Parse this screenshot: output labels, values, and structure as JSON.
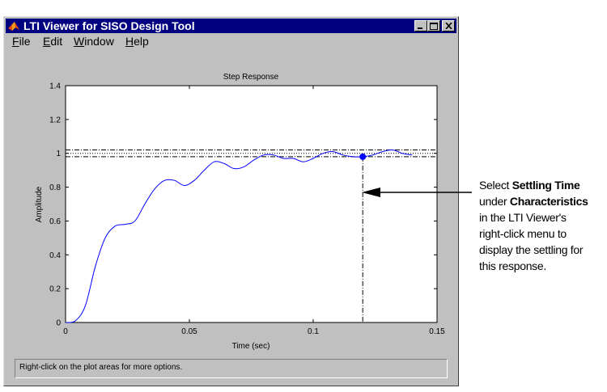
{
  "window": {
    "title": "LTI Viewer for SISO Design Tool",
    "controls": [
      "minimize-icon",
      "maximize-icon",
      "close-icon"
    ]
  },
  "menu": {
    "items": [
      {
        "label": "File",
        "name": "menu-file"
      },
      {
        "label": "Edit",
        "name": "menu-edit"
      },
      {
        "label": "Window",
        "name": "menu-window"
      },
      {
        "label": "Help",
        "name": "menu-help"
      }
    ]
  },
  "status_text": "Right-click on the plot areas for more options.",
  "chart_data": {
    "type": "line",
    "title": "Step Response",
    "xlabel": "Time (sec)",
    "ylabel": "Amplitude",
    "xlim": [
      0,
      0.15
    ],
    "ylim": [
      0,
      1.4
    ],
    "x_ticks": [
      "0",
      "0.05",
      "0.1",
      "0.15"
    ],
    "y_ticks": [
      "0",
      "0.2",
      "0.4",
      "0.6",
      "0.8",
      "1",
      "1.2",
      "1.4"
    ],
    "grid": false,
    "series": [
      {
        "color": "#0000ff",
        "x": [
          0,
          0.004,
          0.008,
          0.012,
          0.016,
          0.02,
          0.024,
          0.028,
          0.032,
          0.036,
          0.04,
          0.044,
          0.048,
          0.052,
          0.056,
          0.06,
          0.064,
          0.068,
          0.072,
          0.076,
          0.08,
          0.084,
          0.088,
          0.092,
          0.096,
          0.1,
          0.104,
          0.108,
          0.112,
          0.116,
          0.12,
          0.124,
          0.128,
          0.132,
          0.136,
          0.14
        ],
        "y": [
          0,
          0.01,
          0.1,
          0.33,
          0.5,
          0.57,
          0.58,
          0.6,
          0.7,
          0.79,
          0.84,
          0.84,
          0.81,
          0.84,
          0.9,
          0.95,
          0.94,
          0.91,
          0.92,
          0.96,
          0.99,
          0.99,
          0.97,
          0.97,
          0.95,
          0.97,
          1.0,
          1.01,
          0.99,
          0.98,
          0.98,
          0.99,
          1.01,
          1.02,
          1.0,
          0.99
        ]
      }
    ],
    "settling_bounds": [
      0.98,
      1.02
    ],
    "steady_state": 1.0,
    "settling_point": {
      "x": 0.12,
      "y": 0.98
    }
  },
  "callout": {
    "line1": "Select",
    "b1": "Settling Time",
    "line2": "under",
    "b2": "Characteristics",
    "line3": "in the LTI Viewer's",
    "line4": "right-click menu to",
    "line5": "display the settling for",
    "line6": "this response."
  }
}
